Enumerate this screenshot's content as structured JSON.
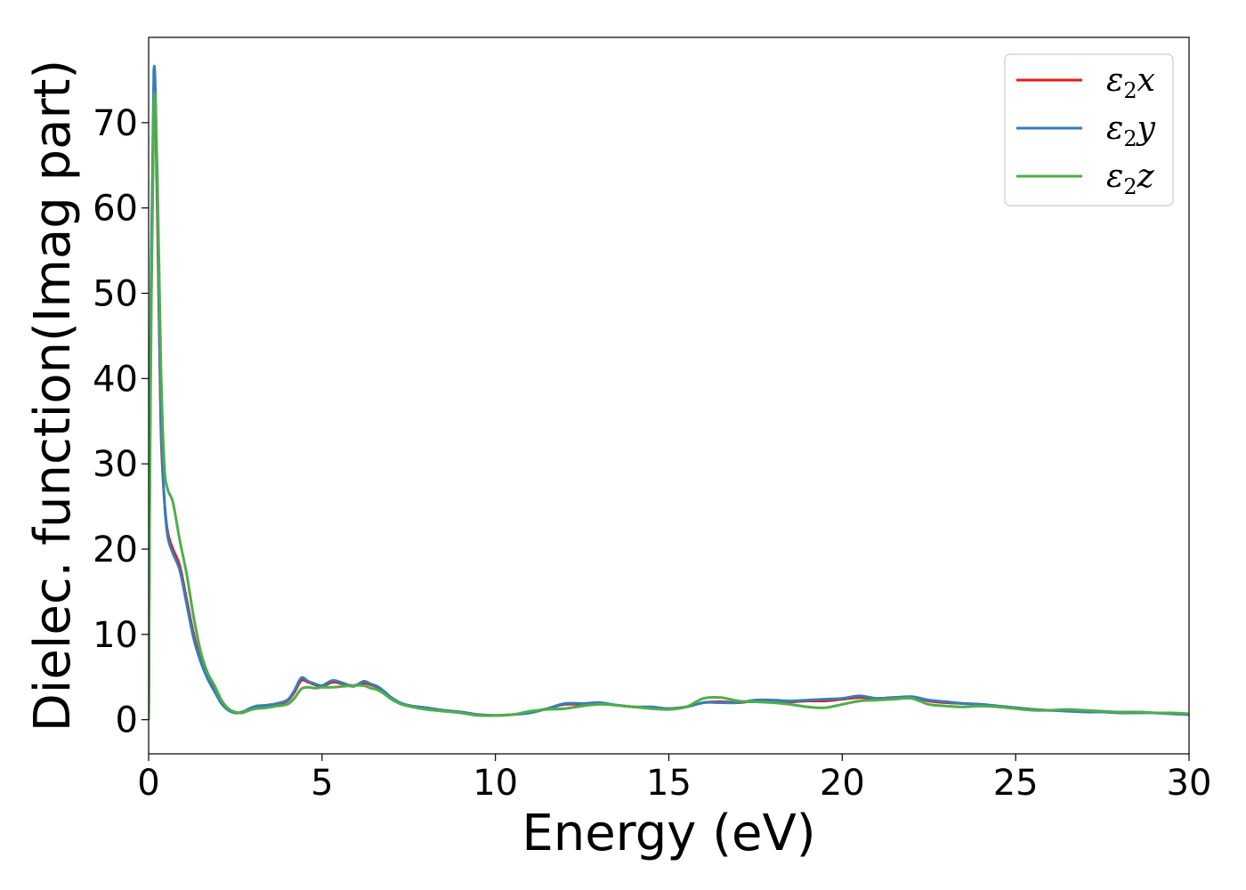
{
  "chart_data": {
    "type": "line",
    "xlabel": "Energy (eV)",
    "ylabel": "Dielec. function(Imag part)",
    "xlim": [
      0,
      30
    ],
    "ylim": [
      -4,
      80
    ],
    "xticks": [
      0,
      5,
      10,
      15,
      20,
      25,
      30
    ],
    "yticks": [
      0,
      10,
      20,
      30,
      40,
      50,
      60,
      70
    ],
    "grid": false,
    "legend_position": "top-right",
    "series": [
      {
        "name": "ε2x",
        "legend_base": "ε",
        "legend_sub": "2",
        "legend_tail": "x",
        "color": "#e41a1c",
        "x": [
          0,
          0.05,
          0.15,
          0.25,
          0.35,
          0.45,
          0.55,
          0.7,
          0.9,
          1.1,
          1.3,
          1.5,
          1.7,
          1.9,
          2.1,
          2.3,
          2.5,
          2.7,
          2.9,
          3.1,
          3.4,
          3.7,
          4.0,
          4.2,
          4.4,
          4.6,
          4.8,
          5.0,
          5.3,
          5.6,
          5.9,
          6.2,
          6.4,
          6.6,
          6.8,
          7.0,
          7.3,
          7.6,
          8.0,
          8.5,
          9.0,
          9.5,
          10.0,
          10.5,
          11.0,
          11.5,
          12.0,
          12.5,
          13.0,
          13.5,
          14.0,
          14.5,
          15.0,
          15.5,
          16.0,
          16.5,
          17.0,
          17.5,
          18.0,
          18.5,
          19.0,
          19.5,
          20.0,
          20.5,
          21.0,
          21.5,
          22.0,
          22.5,
          23.0,
          23.5,
          24.0,
          24.5,
          25.0,
          25.5,
          26.0,
          26.5,
          27.0,
          27.5,
          28.0,
          28.5,
          29.0,
          29.5,
          30.0
        ],
        "y": [
          0,
          40,
          74,
          60,
          35,
          26,
          22,
          20,
          18,
          14,
          10,
          7,
          5,
          3.5,
          2,
          1.2,
          0.8,
          0.9,
          1.2,
          1.4,
          1.6,
          1.8,
          2.2,
          3.2,
          4.6,
          4.4,
          4.1,
          3.9,
          4.4,
          4.2,
          4.0,
          4.3,
          4.1,
          3.8,
          3.2,
          2.5,
          1.9,
          1.6,
          1.4,
          1.1,
          0.9,
          0.6,
          0.5,
          0.6,
          0.9,
          1.3,
          1.8,
          1.8,
          1.9,
          1.7,
          1.5,
          1.4,
          1.3,
          1.5,
          2.0,
          2.1,
          2.0,
          2.2,
          2.2,
          2.1,
          2.2,
          2.2,
          2.4,
          2.6,
          2.5,
          2.6,
          2.6,
          2.2,
          2.0,
          1.9,
          1.8,
          1.6,
          1.4,
          1.2,
          1.1,
          1.1,
          1.0,
          0.9,
          0.9,
          0.9,
          0.8,
          0.7,
          0.6
        ]
      },
      {
        "name": "ε2y",
        "legend_base": "ε",
        "legend_sub": "2",
        "legend_tail": "y",
        "color": "#377eb8",
        "x": [
          0,
          0.05,
          0.15,
          0.25,
          0.35,
          0.45,
          0.55,
          0.7,
          0.9,
          1.1,
          1.3,
          1.5,
          1.7,
          1.9,
          2.1,
          2.3,
          2.5,
          2.7,
          2.9,
          3.1,
          3.4,
          3.7,
          4.0,
          4.2,
          4.4,
          4.6,
          4.8,
          5.0,
          5.3,
          5.6,
          5.9,
          6.2,
          6.4,
          6.6,
          6.8,
          7.0,
          7.3,
          7.6,
          8.0,
          8.5,
          9.0,
          9.5,
          10.0,
          10.5,
          11.0,
          11.5,
          12.0,
          12.5,
          13.0,
          13.5,
          14.0,
          14.5,
          15.0,
          15.5,
          16.0,
          16.5,
          17.0,
          17.5,
          18.0,
          18.5,
          19.0,
          19.5,
          20.0,
          20.5,
          21.0,
          21.5,
          22.0,
          22.5,
          23.0,
          23.5,
          24.0,
          24.5,
          25.0,
          25.5,
          26.0,
          26.5,
          27.0,
          27.5,
          28.0,
          28.5,
          29.0,
          29.5,
          30.0
        ],
        "y": [
          0,
          42,
          76,
          62,
          36,
          26,
          21.5,
          19.5,
          17.5,
          13.5,
          9.5,
          6.8,
          4.8,
          3.3,
          1.9,
          1.1,
          0.8,
          0.9,
          1.3,
          1.6,
          1.7,
          1.9,
          2.3,
          3.4,
          4.9,
          4.5,
          4.2,
          4.0,
          4.6,
          4.3,
          3.9,
          4.5,
          4.2,
          3.9,
          3.3,
          2.6,
          1.9,
          1.6,
          1.4,
          1.1,
          0.9,
          0.6,
          0.5,
          0.6,
          0.8,
          1.3,
          1.9,
          1.9,
          2.0,
          1.7,
          1.5,
          1.5,
          1.3,
          1.5,
          2.0,
          2.0,
          2.0,
          2.3,
          2.3,
          2.2,
          2.3,
          2.4,
          2.5,
          2.8,
          2.5,
          2.6,
          2.7,
          2.3,
          2.1,
          1.9,
          1.8,
          1.6,
          1.4,
          1.2,
          1.1,
          1.0,
          0.9,
          0.9,
          0.8,
          0.8,
          0.8,
          0.7,
          0.6
        ]
      },
      {
        "name": "ε2z",
        "legend_base": "ε",
        "legend_sub": "2",
        "legend_tail": "z",
        "color": "#4daf4a",
        "x": [
          0,
          0.05,
          0.15,
          0.25,
          0.35,
          0.45,
          0.55,
          0.7,
          0.9,
          1.1,
          1.3,
          1.5,
          1.7,
          1.9,
          2.1,
          2.3,
          2.5,
          2.7,
          2.9,
          3.1,
          3.4,
          3.7,
          4.0,
          4.2,
          4.4,
          4.6,
          4.8,
          5.0,
          5.3,
          5.6,
          5.9,
          6.2,
          6.4,
          6.6,
          6.8,
          7.0,
          7.3,
          7.6,
          8.0,
          8.5,
          9.0,
          9.5,
          10.0,
          10.5,
          11.0,
          11.5,
          12.0,
          12.5,
          13.0,
          13.5,
          14.0,
          14.5,
          15.0,
          15.5,
          16.0,
          16.5,
          17.0,
          17.5,
          18.0,
          18.5,
          19.0,
          19.5,
          20.0,
          20.5,
          21.0,
          21.5,
          22.0,
          22.5,
          23.0,
          23.5,
          24.0,
          24.5,
          25.0,
          25.5,
          26.0,
          26.5,
          27.0,
          27.5,
          28.0,
          28.5,
          29.0,
          29.5,
          30.0
        ],
        "y": [
          0,
          36,
          72,
          64,
          42,
          30,
          27,
          25.5,
          21,
          17,
          12,
          8,
          5.5,
          4,
          2.3,
          1.3,
          0.9,
          0.8,
          1.1,
          1.3,
          1.4,
          1.6,
          1.8,
          2.5,
          3.6,
          3.8,
          3.7,
          3.8,
          3.8,
          3.9,
          4.0,
          4.0,
          3.7,
          3.5,
          3.0,
          2.4,
          1.8,
          1.5,
          1.2,
          1.0,
          0.8,
          0.5,
          0.5,
          0.6,
          1.0,
          1.2,
          1.3,
          1.6,
          1.8,
          1.7,
          1.5,
          1.3,
          1.2,
          1.5,
          2.5,
          2.6,
          2.2,
          2.1,
          2.0,
          1.8,
          1.5,
          1.4,
          1.8,
          2.2,
          2.3,
          2.4,
          2.5,
          1.8,
          1.6,
          1.5,
          1.6,
          1.5,
          1.3,
          1.1,
          1.1,
          1.2,
          1.1,
          1.0,
          0.9,
          0.9,
          0.8,
          0.8,
          0.7
        ]
      }
    ]
  }
}
